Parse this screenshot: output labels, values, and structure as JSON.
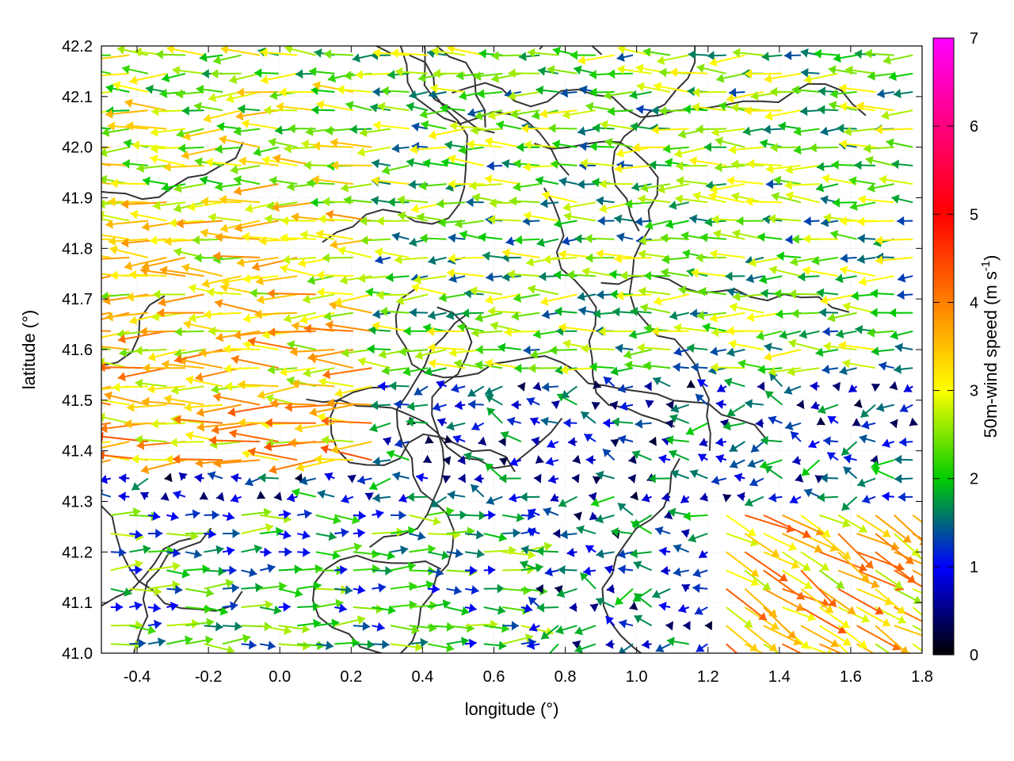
{
  "chart_data": {
    "type": "vector-field",
    "xlabel": "longitude (°)",
    "ylabel": "latitude (°)",
    "xlim": [
      -0.5,
      1.8
    ],
    "ylim": [
      41.0,
      42.2
    ],
    "xticks": [
      "-0.4",
      "-0.2",
      "0.0",
      "0.2",
      "0.4",
      "0.6",
      "0.8",
      "1.0",
      "1.2",
      "1.4",
      "1.6",
      "1.8"
    ],
    "yticks": [
      "41.0",
      "41.1",
      "41.2",
      "41.3",
      "41.4",
      "41.5",
      "41.6",
      "41.7",
      "41.8",
      "41.9",
      "42.0",
      "42.1",
      "42.2"
    ],
    "grid": true,
    "colorbar": {
      "label": "50m-wind speed (m s",
      "label_superscript": "-1",
      "label_suffix": ")",
      "range": [
        0,
        7
      ],
      "ticks": [
        "0",
        "1",
        "2",
        "3",
        "4",
        "5",
        "6",
        "7"
      ],
      "colormap": [
        "#000000",
        "#0000ff",
        "#00cc00",
        "#ffff00",
        "#ff8000",
        "#ff0000",
        "#ff00ff"
      ]
    },
    "contour_color": "#333333",
    "vector_regions": [
      {
        "region": "west, 41.4–42.2",
        "direction": "westward",
        "speed_ms": 4.5
      },
      {
        "region": "central band, 41.6–41.9",
        "direction": "westward",
        "speed_ms": 2.5
      },
      {
        "region": "south-west, 41.0–41.3",
        "direction": "eastward",
        "speed_ms": 2.0
      },
      {
        "region": "south-east, 41.0–41.3",
        "direction": "south-eastward",
        "speed_ms": 4.0
      },
      {
        "region": "central lowlands, 41.3–41.5",
        "direction": "weak, variable",
        "speed_ms": 1.0
      }
    ]
  }
}
